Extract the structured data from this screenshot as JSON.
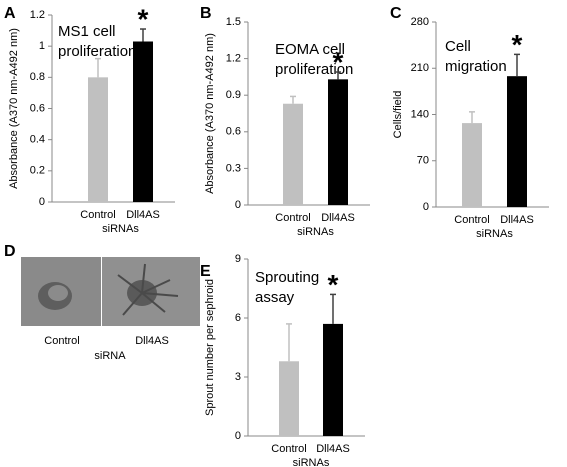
{
  "chart_data": [
    {
      "type": "bar",
      "panel_label": "A",
      "annotation": [
        "MS1 cell",
        "proliferation"
      ],
      "ylabel": "Absorbance (A370 nm-A492 nm)",
      "xlabel": "siRNAs",
      "categories": [
        "Control",
        "Dll4AS"
      ],
      "values": [
        0.8,
        1.03
      ],
      "errors": [
        0.12,
        0.08
      ],
      "colors": [
        "#c0c0c0",
        "#000000"
      ],
      "star": "*",
      "ylim": [
        0,
        1.2
      ],
      "yticks": [
        0,
        0.2,
        0.4,
        0.6,
        0.8,
        1,
        1.2
      ]
    },
    {
      "type": "bar",
      "panel_label": "B",
      "annotation": [
        "EOMA cell",
        "proliferation"
      ],
      "ylabel": "Absorbance (A370 nm-A492 nm)",
      "xlabel": "siRNAs",
      "categories": [
        "Control",
        "Dll4AS"
      ],
      "values": [
        0.83,
        1.03
      ],
      "errors": [
        0.06,
        0.06
      ],
      "colors": [
        "#c0c0c0",
        "#000000"
      ],
      "star": "*",
      "ylim": [
        0,
        1.5
      ],
      "yticks": [
        0,
        0.3,
        0.6,
        0.9,
        1.2,
        1.5
      ]
    },
    {
      "type": "bar",
      "panel_label": "C",
      "annotation": [
        "Cell",
        "migration"
      ],
      "ylabel": "Cells/field",
      "xlabel": "siRNAs",
      "categories": [
        "Control",
        "Dll4AS"
      ],
      "values": [
        127,
        198
      ],
      "errors": [
        17,
        33
      ],
      "colors": [
        "#c0c0c0",
        "#000000"
      ],
      "star": "*",
      "ylim": [
        0,
        280
      ],
      "yticks": [
        0,
        70,
        140,
        210,
        280
      ]
    },
    {
      "type": "bar",
      "panel_label": "E",
      "annotation": [
        "Sprouting",
        "assay"
      ],
      "ylabel": "Sprout number per sephroid",
      "xlabel": "siRNAs",
      "categories": [
        "Control",
        "Dll4AS"
      ],
      "values": [
        3.8,
        5.7
      ],
      "errors": [
        1.9,
        1.5
      ],
      "colors": [
        "#c0c0c0",
        "#000000"
      ],
      "star": "*",
      "ylim": [
        0,
        9
      ],
      "yticks": [
        0,
        3,
        6,
        9
      ]
    }
  ],
  "image_panel": {
    "label": "D",
    "captions": [
      "Control",
      "Dll4AS"
    ],
    "xlabel": "siRNA"
  }
}
